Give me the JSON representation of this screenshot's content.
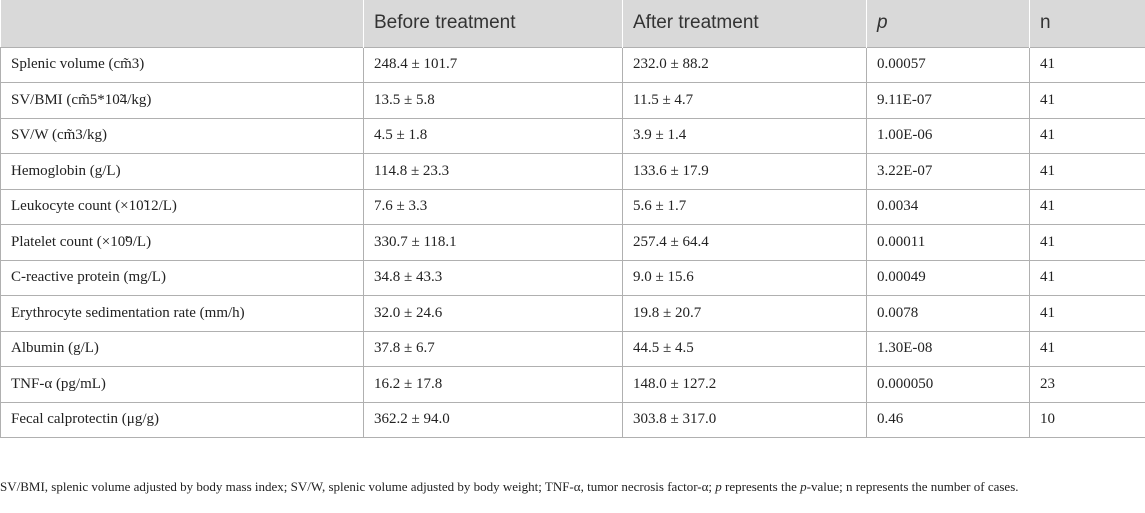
{
  "table": {
    "headers": [
      "",
      "Before treatment",
      "After treatment",
      "p",
      "n"
    ],
    "rows": [
      [
        "Splenic volume (cm̃3)",
        "248.4 ± 101.7",
        "232.0 ± 88.2",
        "0.00057",
        "41"
      ],
      [
        "SV/BMI (cm̃5*10̃4/kg)",
        "13.5 ± 5.8",
        "11.5 ± 4.7",
        "9.11E-07",
        "41"
      ],
      [
        "SV/W (cm̃3/kg)",
        "4.5 ± 1.8",
        "3.9 ± 1.4",
        "1.00E-06",
        "41"
      ],
      [
        "Hemoglobin (g/L)",
        "114.8 ± 23.3",
        "133.6 ± 17.9",
        "3.22E-07",
        "41"
      ],
      [
        "Leukocyte count (×10̃12/L)",
        "7.6 ± 3.3",
        "5.6 ± 1.7",
        "0.0034",
        "41"
      ],
      [
        "Platelet count (×10̃9/L)",
        "330.7 ± 118.1",
        "257.4 ± 64.4",
        "0.00011",
        "41"
      ],
      [
        "C-reactive protein (mg/L)",
        "34.8 ± 43.3",
        "9.0 ± 15.6",
        "0.00049",
        "41"
      ],
      [
        "Erythrocyte sedimentation rate (mm/h)",
        "32.0 ± 24.6",
        "19.8 ± 20.7",
        "0.0078",
        "41"
      ],
      [
        "Albumin (g/L)",
        "37.8 ± 6.7",
        "44.5 ± 4.5",
        "1.30E-08",
        "41"
      ],
      [
        "TNF-α (pg/mL)",
        "16.2 ± 17.8",
        "148.0 ± 127.2",
        "0.000050",
        "23"
      ],
      [
        "Fecal calprotectin (μg/g)",
        "362.2 ± 94.0",
        "303.8 ± 317.0",
        "0.46",
        "10"
      ]
    ]
  },
  "footnote": {
    "part1": "SV/BMI, splenic volume adjusted by body mass index; SV/W, splenic volume adjusted by body weight; TNF-α, tumor necrosis factor-α; ",
    "p_italic": "p",
    "part2": " represents the ",
    "p_italic2": "p",
    "part3": "-value; n represents the number of cases."
  },
  "colors": {
    "header_bg": "#d9d9d9",
    "border": "#b0b0b0",
    "text": "#222222"
  }
}
